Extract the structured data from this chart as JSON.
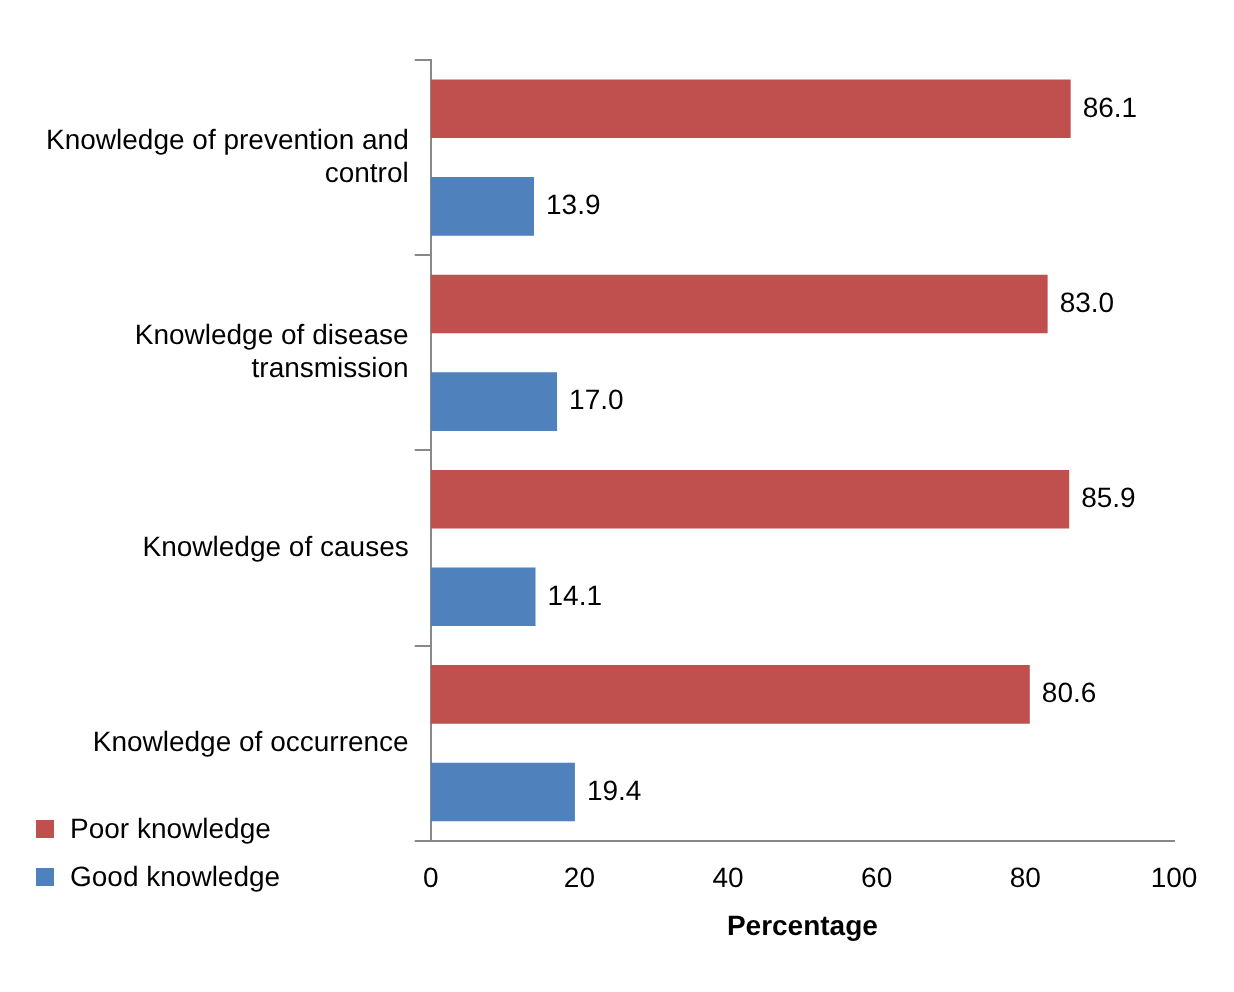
{
  "chart_data": {
    "type": "bar",
    "orientation": "horizontal",
    "xlabel": "Percentage",
    "categories": [
      "Knowledge of prevention and control",
      "Knowledge of disease transmission",
      "Knowledge of causes",
      "Knowledge of occurrence"
    ],
    "series": [
      {
        "name": "Poor knowledge",
        "color": "#c0504d",
        "values": [
          86.1,
          83.0,
          85.9,
          80.6
        ],
        "value_labels": [
          "86.1",
          "83.0",
          "85.9",
          "80.6"
        ]
      },
      {
        "name": "Good knowledge",
        "color": "#4f81bd",
        "values": [
          13.9,
          17.0,
          14.1,
          19.4
        ],
        "value_labels": [
          "13.9",
          "17.0",
          "14.1",
          "19.4"
        ]
      }
    ],
    "xlim": [
      0,
      100
    ],
    "xticks": [
      0,
      20,
      40,
      60,
      80,
      100
    ],
    "grid": false,
    "legend": "bottom left"
  }
}
